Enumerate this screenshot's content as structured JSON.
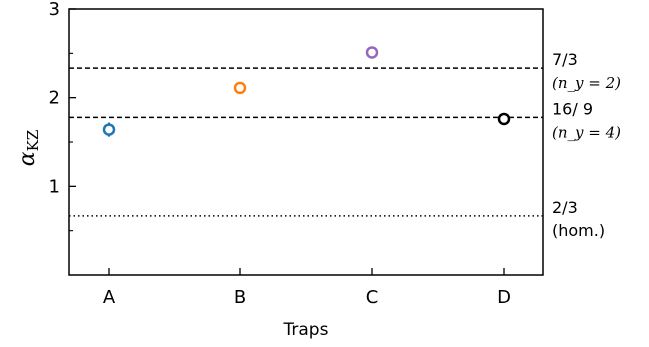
{
  "chart_data": {
    "type": "scatter",
    "title": "",
    "xlabel": "Traps",
    "ylabel_symbol": "α",
    "ylabel_subscript": "KZ",
    "categories": [
      "A",
      "B",
      "C",
      "D"
    ],
    "ylim": [
      0,
      3
    ],
    "yticks_major": [
      1,
      2,
      3
    ],
    "yticks_minor": [
      0.5,
      1.5,
      2.5
    ],
    "grid": false,
    "points": [
      {
        "category": "A",
        "value": 1.64,
        "err": 0.08,
        "color": "#1f77b4"
      },
      {
        "category": "B",
        "value": 2.11,
        "err": 0.02,
        "color": "#ff7f0e"
      },
      {
        "category": "C",
        "value": 2.51,
        "err": 0.02,
        "color": "#9467bd"
      },
      {
        "category": "D",
        "value": 1.76,
        "err": 0.02,
        "color": "#000000"
      }
    ],
    "reference_lines": [
      {
        "value": 2.3333,
        "style": "dashed",
        "label": "7/3",
        "sublabel": "(n_y = 2)"
      },
      {
        "value": 1.7778,
        "style": "dashed",
        "label": "16/ 9",
        "sublabel": "(n_y = 4)"
      },
      {
        "value": 0.6667,
        "style": "dotted",
        "label": "2/3",
        "sublabel": "(hom.)"
      }
    ]
  }
}
